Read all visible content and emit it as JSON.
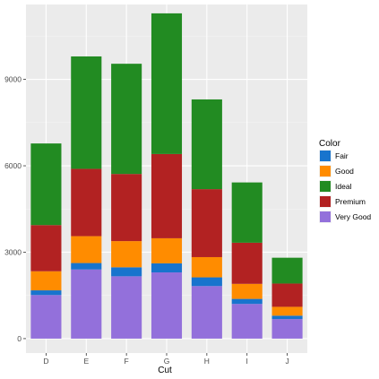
{
  "chart_data": {
    "type": "bar",
    "stacked": true,
    "title": "",
    "xlabel": "Cut",
    "ylabel": "",
    "categories": [
      "D",
      "E",
      "F",
      "G",
      "H",
      "I",
      "J"
    ],
    "ylim": [
      -500,
      11600
    ],
    "yticks": [
      0,
      3000,
      6000,
      9000
    ],
    "grid": true,
    "legend_title": "Color",
    "legend_position": "right",
    "series": [
      {
        "name": "Fair",
        "color": "#1874CD",
        "values": [
          163,
          224,
          312,
          314,
          303,
          175,
          119
        ]
      },
      {
        "name": "Good",
        "color": "#FF8C00",
        "values": [
          662,
          933,
          909,
          871,
          702,
          522,
          307
        ]
      },
      {
        "name": "Ideal",
        "color": "#228B22",
        "values": [
          2834,
          3903,
          3826,
          4884,
          3115,
          2093,
          896
        ]
      },
      {
        "name": "Premium",
        "color": "#B22222",
        "values": [
          1603,
          2337,
          2331,
          2924,
          2360,
          1428,
          808
        ]
      },
      {
        "name": "Very Good",
        "color": "#9370DB",
        "values": [
          1513,
          2400,
          2164,
          2299,
          1824,
          1204,
          678
        ]
      }
    ],
    "stack_order_bottom_to_top": [
      "Very Good",
      "Fair",
      "Good",
      "Premium",
      "Ideal"
    ]
  }
}
